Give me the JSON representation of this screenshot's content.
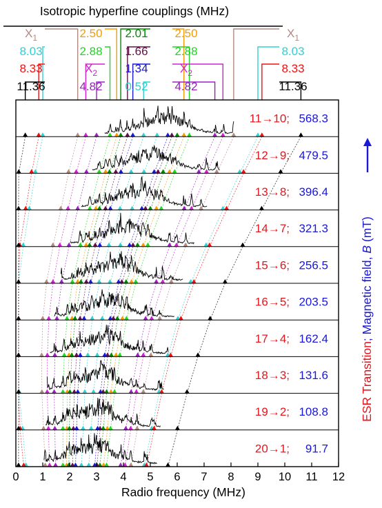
{
  "chart_data": {
    "type": "line",
    "title": "Isotropic hyperfine couplings (MHz)",
    "xlabel": "Radio frequency (MHz)",
    "ylabel_parts": [
      {
        "text": "ESR Transition",
        "color": "#e8141c"
      },
      {
        "text": "; Magnetic field, ",
        "color": "#1a18d8"
      },
      {
        "text": "B",
        "color": "#1a18d8",
        "italic": true
      },
      {
        "text": " (mT)",
        "color": "#1a18d8"
      }
    ],
    "xlim": [
      0,
      12
    ],
    "xticks": [
      0,
      1,
      2,
      3,
      4,
      5,
      6,
      7,
      8,
      9,
      10,
      11,
      12
    ],
    "couplings": [
      {
        "label": "X",
        "sub": "1",
        "color": "#b08a80",
        "xs": [
          2.3,
          8.1
        ]
      },
      {
        "label": "2.50",
        "color": "#f59b00",
        "xs": [
          3.75,
          6.25
        ]
      },
      {
        "label": "2.01",
        "color": "#008a00",
        "xs": [
          3.9,
          6.0
        ]
      },
      {
        "label": "8.03",
        "color": "#30d0d0",
        "xs": [
          1.0,
          9.0
        ]
      },
      {
        "label": "2.88",
        "color": "#20d820",
        "xs": [
          3.5,
          6.45
        ]
      },
      {
        "label": "1.66",
        "color": "#60104a",
        "xs": [
          4.15,
          5.8
        ]
      },
      {
        "label": "8.33",
        "color": "#f01010",
        "xs": [
          0.85,
          9.15
        ]
      },
      {
        "label": "X",
        "sub": "2",
        "color": "#d020d0",
        "xs": [
          2.6,
          7.7
        ]
      },
      {
        "label": "1.34",
        "color": "#1a18d8",
        "xs": [
          4.35,
          5.65
        ]
      },
      {
        "label": "11.36",
        "color": "#000000",
        "xs": [
          0.35,
          10.6
        ]
      },
      {
        "label": "4.82",
        "color": "#9a20c0",
        "xs": [
          3.0,
          7.4
        ]
      },
      {
        "label": "0.52",
        "color": "#30d0d0",
        "xs": [
          4.75,
          5.25
        ]
      }
    ],
    "transitions": [
      {
        "label": "11→10",
        "field": "568.3",
        "center": 5.5
      },
      {
        "label": "12→9",
        "field": "479.5",
        "center": 5.0
      },
      {
        "label": "13→8",
        "field": "396.4",
        "center": 4.55
      },
      {
        "label": "14→7",
        "field": "321.3",
        "center": 4.1
      },
      {
        "label": "15→6",
        "field": "256.5",
        "center": 3.7
      },
      {
        "label": "16→5",
        "field": "203.5",
        "center": 3.4
      },
      {
        "label": "17→4",
        "field": "162.4",
        "center": 3.2
      },
      {
        "label": "18→3",
        "field": "131.6",
        "center": 3.05
      },
      {
        "label": "19→2",
        "field": "108.8",
        "center": 2.95
      },
      {
        "label": "20→1",
        "field": "91.7",
        "center": 2.85
      }
    ]
  }
}
